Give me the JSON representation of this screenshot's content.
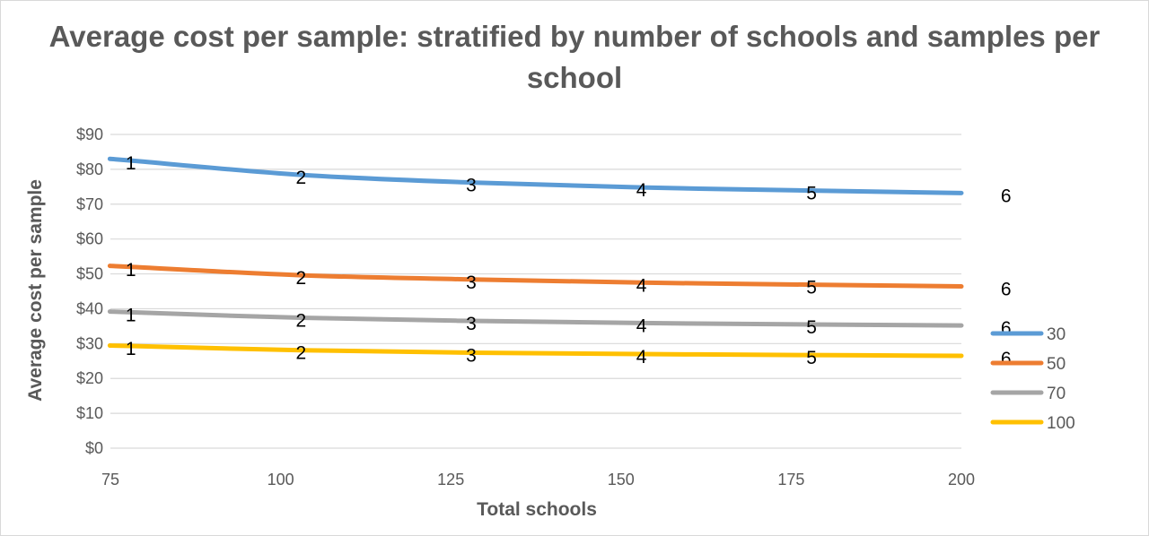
{
  "chart_data": {
    "type": "line",
    "title": "Average cost per sample: stratified by number of schools and samples per school",
    "xlabel": "Total schools",
    "ylabel": "Average cost per sample",
    "x": [
      78,
      103,
      128,
      153,
      178,
      203
    ],
    "x_ticks": [
      "75",
      "100",
      "125",
      "150",
      "175",
      "200"
    ],
    "x_tick_values": [
      75,
      100,
      125,
      150,
      175,
      200
    ],
    "xlim": [
      75,
      200
    ],
    "y_ticks": [
      "$0",
      "$10",
      "$20",
      "$30",
      "$40",
      "$50",
      "$60",
      "$70",
      "$80",
      "$90"
    ],
    "ylim": [
      0,
      90
    ],
    "grid": true,
    "legend_position": "right",
    "point_labels": [
      "1",
      "2",
      "3",
      "4",
      "5",
      "6"
    ],
    "series": [
      {
        "name": "30",
        "color": "#5B9BD5",
        "values": [
          82.5,
          78.4,
          76.2,
          74.8,
          73.9,
          73.2
        ]
      },
      {
        "name": "50",
        "color": "#ED7D31",
        "values": [
          52.0,
          49.6,
          48.4,
          47.5,
          46.9,
          46.4
        ]
      },
      {
        "name": "70",
        "color": "#A5A5A5",
        "values": [
          39.0,
          37.4,
          36.5,
          35.9,
          35.5,
          35.2
        ]
      },
      {
        "name": "100",
        "color": "#FFC000",
        "values": [
          29.3,
          28.1,
          27.4,
          27.0,
          26.7,
          26.5
        ]
      }
    ]
  }
}
